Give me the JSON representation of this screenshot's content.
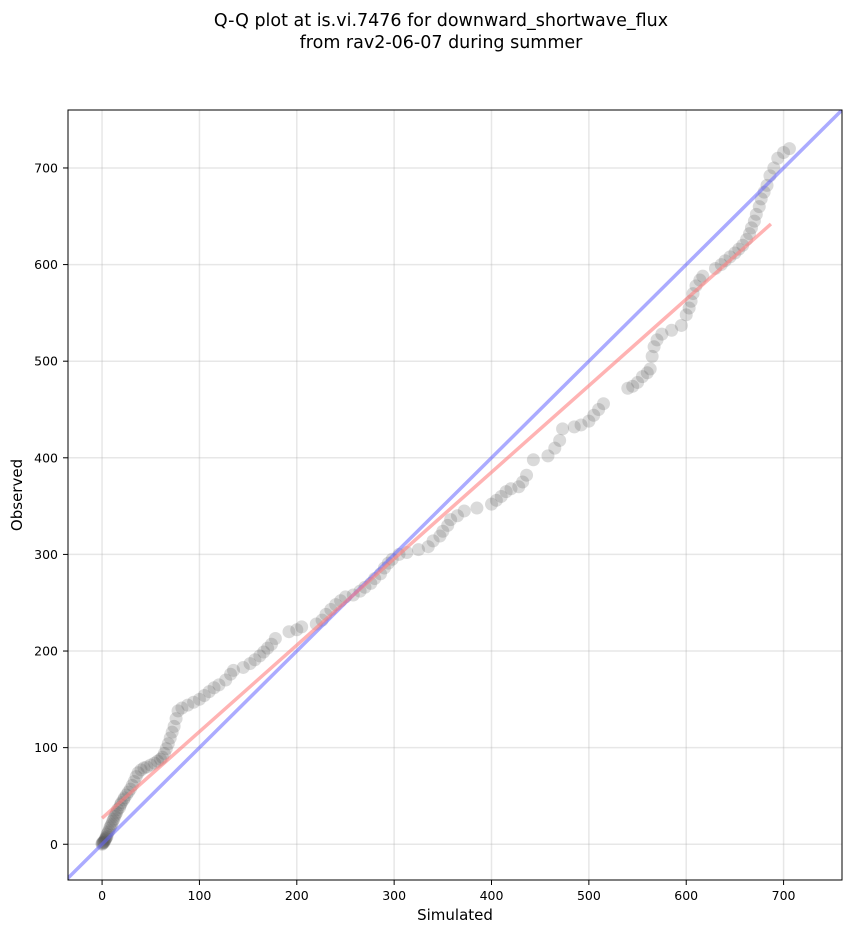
{
  "chart_data": {
    "type": "scatter",
    "title_line1": "Q-Q plot at is.vi.7476 for downward_shortwave_flux",
    "title_line2": "from rav2-06-07 during summer",
    "xlabel": "Simulated",
    "ylabel": "Observed",
    "xlim": [
      -35,
      760
    ],
    "ylim": [
      -37,
      760
    ],
    "xticks": [
      0,
      100,
      200,
      300,
      400,
      500,
      600,
      700
    ],
    "yticks": [
      0,
      100,
      200,
      300,
      400,
      500,
      600,
      700
    ],
    "xtick_labels": [
      "0",
      "100",
      "200",
      "300",
      "400",
      "500",
      "600",
      "700"
    ],
    "ytick_labels": [
      "0",
      "100",
      "200",
      "300",
      "400",
      "500",
      "600",
      "700"
    ],
    "grid": true,
    "colors": {
      "points": "#555555",
      "identity_line": "#6666ff",
      "fit_line": "#ff8080"
    },
    "identity_line": {
      "label": "1:1"
    },
    "fit_line": {
      "x": [
        0,
        687
      ],
      "y": [
        27,
        642
      ]
    },
    "points": [
      [
        0,
        0
      ],
      [
        0,
        1
      ],
      [
        1,
        1
      ],
      [
        1,
        2
      ],
      [
        2,
        2
      ],
      [
        2,
        3
      ],
      [
        3,
        4
      ],
      [
        3,
        5
      ],
      [
        4,
        6
      ],
      [
        4,
        7
      ],
      [
        5,
        8
      ],
      [
        5,
        10
      ],
      [
        6,
        12
      ],
      [
        7,
        14
      ],
      [
        8,
        17
      ],
      [
        9,
        19
      ],
      [
        10,
        21
      ],
      [
        11,
        24
      ],
      [
        12,
        26
      ],
      [
        13,
        29
      ],
      [
        14,
        31
      ],
      [
        15,
        33
      ],
      [
        16,
        36
      ],
      [
        18,
        38
      ],
      [
        19,
        41
      ],
      [
        20,
        43
      ],
      [
        22,
        46
      ],
      [
        23,
        48
      ],
      [
        25,
        51
      ],
      [
        27,
        54
      ],
      [
        29,
        57
      ],
      [
        31,
        61
      ],
      [
        33,
        65
      ],
      [
        35,
        70
      ],
      [
        37,
        74
      ],
      [
        40,
        77
      ],
      [
        43,
        79
      ],
      [
        46,
        80
      ],
      [
        50,
        82
      ],
      [
        54,
        84
      ],
      [
        57,
        86
      ],
      [
        60,
        88
      ],
      [
        62,
        90
      ],
      [
        64,
        94
      ],
      [
        66,
        99
      ],
      [
        68,
        104
      ],
      [
        70,
        110
      ],
      [
        72,
        116
      ],
      [
        74,
        122
      ],
      [
        76,
        130
      ],
      [
        78,
        138
      ],
      [
        82,
        141
      ],
      [
        88,
        144
      ],
      [
        94,
        147
      ],
      [
        100,
        150
      ],
      [
        105,
        154
      ],
      [
        110,
        158
      ],
      [
        115,
        162
      ],
      [
        120,
        165
      ],
      [
        127,
        170
      ],
      [
        132,
        176
      ],
      [
        135,
        180
      ],
      [
        145,
        183
      ],
      [
        152,
        187
      ],
      [
        157,
        191
      ],
      [
        162,
        195
      ],
      [
        166,
        199
      ],
      [
        170,
        203
      ],
      [
        174,
        207
      ],
      [
        178,
        213
      ],
      [
        192,
        220
      ],
      [
        200,
        222
      ],
      [
        205,
        225
      ],
      [
        220,
        228
      ],
      [
        226,
        232
      ],
      [
        230,
        238
      ],
      [
        235,
        243
      ],
      [
        240,
        248
      ],
      [
        245,
        252
      ],
      [
        250,
        256
      ],
      [
        258,
        258
      ],
      [
        265,
        262
      ],
      [
        270,
        266
      ],
      [
        276,
        270
      ],
      [
        280,
        275
      ],
      [
        286,
        280
      ],
      [
        290,
        286
      ],
      [
        294,
        291
      ],
      [
        298,
        295
      ],
      [
        305,
        300
      ],
      [
        313,
        302
      ],
      [
        325,
        305
      ],
      [
        335,
        308
      ],
      [
        340,
        314
      ],
      [
        347,
        319
      ],
      [
        350,
        324
      ],
      [
        355,
        330
      ],
      [
        358,
        336
      ],
      [
        365,
        340
      ],
      [
        372,
        345
      ],
      [
        385,
        348
      ],
      [
        400,
        352
      ],
      [
        405,
        356
      ],
      [
        410,
        360
      ],
      [
        415,
        365
      ],
      [
        420,
        368
      ],
      [
        428,
        370
      ],
      [
        432,
        375
      ],
      [
        436,
        382
      ],
      [
        443,
        398
      ],
      [
        458,
        402
      ],
      [
        465,
        410
      ],
      [
        470,
        418
      ],
      [
        473,
        430
      ],
      [
        485,
        432
      ],
      [
        492,
        434
      ],
      [
        500,
        438
      ],
      [
        505,
        444
      ],
      [
        510,
        450
      ],
      [
        515,
        456
      ],
      [
        540,
        472
      ],
      [
        545,
        474
      ],
      [
        550,
        478
      ],
      [
        555,
        484
      ],
      [
        560,
        488
      ],
      [
        563,
        492
      ],
      [
        565,
        505
      ],
      [
        567,
        515
      ],
      [
        570,
        522
      ],
      [
        575,
        528
      ],
      [
        585,
        532
      ],
      [
        595,
        537
      ],
      [
        600,
        548
      ],
      [
        603,
        555
      ],
      [
        605,
        562
      ],
      [
        607,
        570
      ],
      [
        610,
        578
      ],
      [
        614,
        584
      ],
      [
        617,
        588
      ],
      [
        630,
        596
      ],
      [
        636,
        600
      ],
      [
        640,
        604
      ],
      [
        645,
        608
      ],
      [
        650,
        612
      ],
      [
        654,
        616
      ],
      [
        658,
        620
      ],
      [
        662,
        626
      ],
      [
        665,
        632
      ],
      [
        667,
        638
      ],
      [
        670,
        645
      ],
      [
        672,
        652
      ],
      [
        675,
        660
      ],
      [
        677,
        668
      ],
      [
        680,
        675
      ],
      [
        683,
        682
      ],
      [
        686,
        692
      ],
      [
        690,
        700
      ],
      [
        694,
        710
      ],
      [
        700,
        716
      ],
      [
        706,
        720
      ]
    ]
  }
}
